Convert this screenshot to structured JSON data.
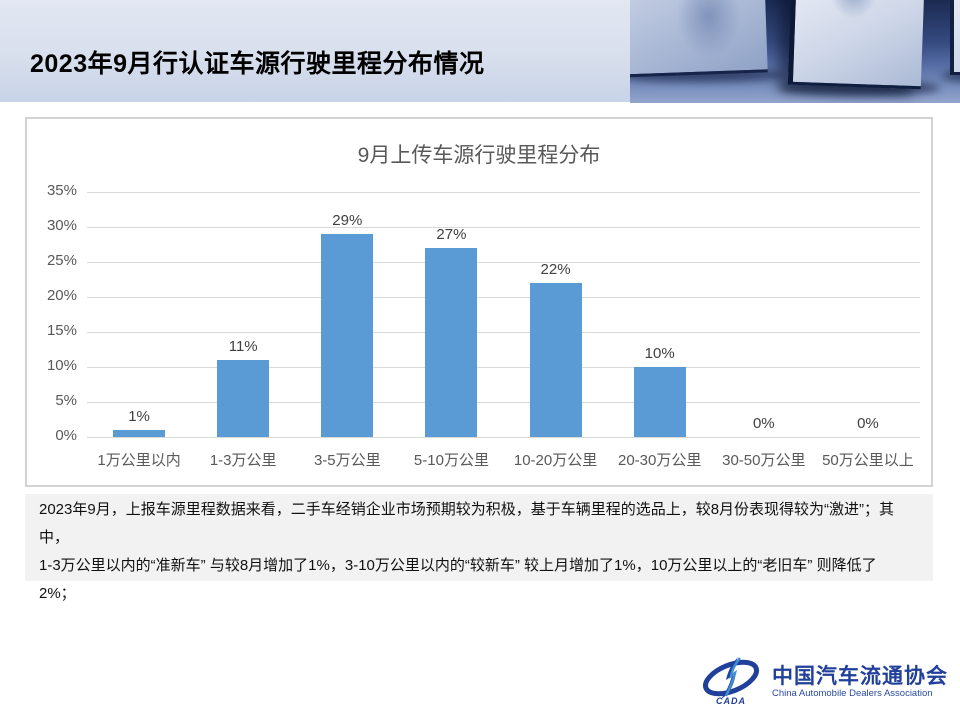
{
  "header": {
    "title": "2023年9月行认证车源行驶里程分布情况"
  },
  "chart_data": {
    "type": "bar",
    "title": "9月上传车源行驶里程分布",
    "categories": [
      "1万公里以内",
      "1-3万公里",
      "3-5万公里",
      "5-10万公里",
      "10-20万公里",
      "20-30万公里",
      "30-50万公里",
      "50万公里以上"
    ],
    "values": [
      1,
      11,
      29,
      27,
      22,
      10,
      0,
      0
    ],
    "value_labels": [
      "1%",
      "11%",
      "29%",
      "27%",
      "22%",
      "10%",
      "0%",
      "0%"
    ],
    "xlabel": "",
    "ylabel": "",
    "ylim": [
      0,
      35
    ],
    "y_ticks": [
      "35%",
      "30%",
      "25%",
      "20%",
      "15%",
      "10%",
      "5%",
      "0%"
    ],
    "grid": true,
    "legend": "none",
    "bar_color": "#5B9BD5",
    "gridline_color": "#d9d9d9",
    "tick_label_color": "#595959",
    "value_label_color": "#404040",
    "title_color": "#595959"
  },
  "summary": {
    "lines": [
      "2023年9月，上报车源里程数据来看，二手车经销企业市场预期较为积极，基于车辆里程的选品上，较8月份表现得较为“激进”；其中，",
      "1-3万公里以内的“准新车” 与较8月增加了1%，3-10万公里以内的“较新车” 较上月增加了1%，10万公里以上的“老旧车” 则降低了",
      "2%；"
    ]
  },
  "footer_logo": {
    "acronym": "CADA",
    "name_cn": "中国汽车流通协会",
    "name_en": "China Automobile Dealers Association",
    "brand_color": "#21409a"
  }
}
